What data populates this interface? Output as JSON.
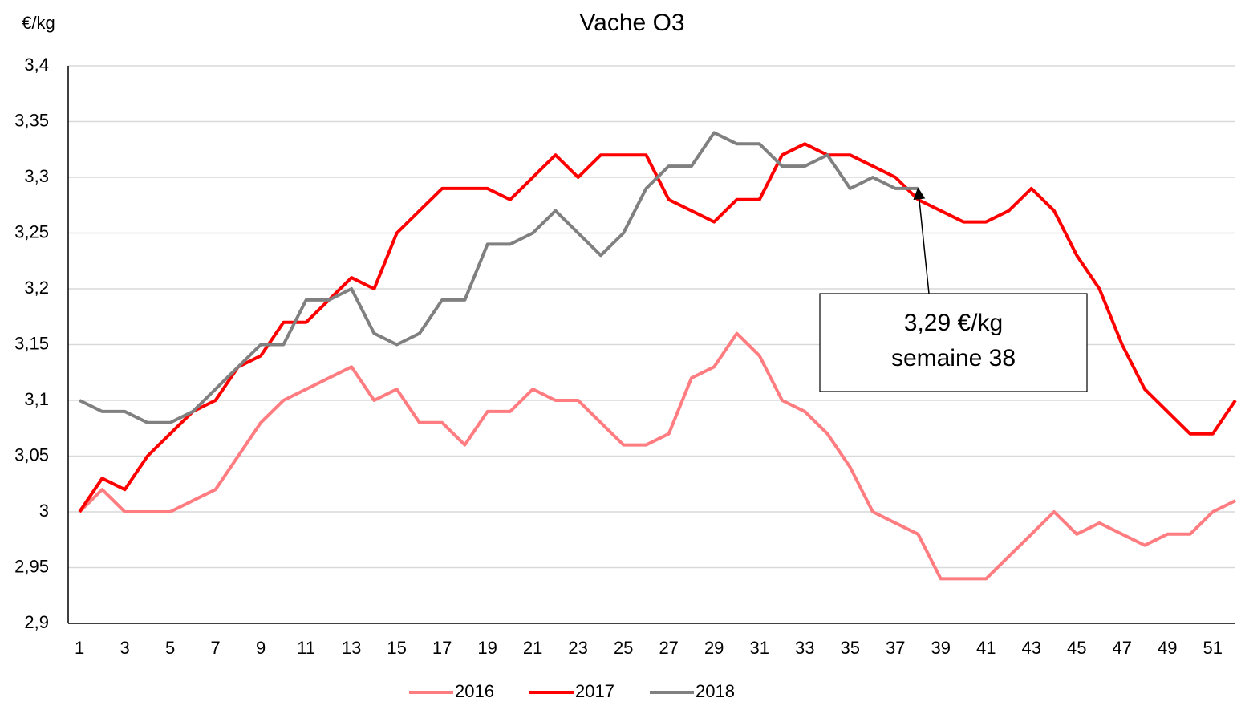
{
  "chart_data": {
    "type": "line",
    "title": "Vache O3",
    "y_label": "€/kg",
    "x": [
      1,
      2,
      3,
      4,
      5,
      6,
      7,
      8,
      9,
      10,
      11,
      12,
      13,
      14,
      15,
      16,
      17,
      18,
      19,
      20,
      21,
      22,
      23,
      24,
      25,
      26,
      27,
      28,
      29,
      30,
      31,
      32,
      33,
      34,
      35,
      36,
      37,
      38,
      39,
      40,
      41,
      42,
      43,
      44,
      45,
      46,
      47,
      48,
      49,
      50,
      51,
      52
    ],
    "xlim": [
      0.5,
      52
    ],
    "xticks": [
      1,
      3,
      5,
      7,
      9,
      11,
      13,
      15,
      17,
      19,
      21,
      23,
      25,
      27,
      29,
      31,
      33,
      35,
      37,
      39,
      41,
      43,
      45,
      47,
      49,
      51
    ],
    "ylim": [
      2.9,
      3.4
    ],
    "yticks": [
      {
        "value": 2.9,
        "label": "2,9"
      },
      {
        "value": 2.95,
        "label": "2,95"
      },
      3,
      {
        "value": 3.05,
        "label": "3,05"
      },
      {
        "value": 3.1,
        "label": "3,1"
      },
      {
        "value": 3.15,
        "label": "3,15"
      },
      {
        "value": 3.2,
        "label": "3,2"
      },
      {
        "value": 3.25,
        "label": "3,25"
      },
      {
        "value": 3.3,
        "label": "3,3"
      },
      {
        "value": 3.35,
        "label": "3,35"
      },
      {
        "value": 3.4,
        "label": "3,4"
      }
    ],
    "grid": true,
    "legend": "bottom",
    "series": [
      {
        "name": "2016",
        "color": "#ff7c80",
        "values": [
          3.0,
          3.02,
          3.0,
          3.0,
          3.0,
          3.01,
          3.02,
          3.05,
          3.08,
          3.1,
          3.11,
          3.12,
          3.13,
          3.1,
          3.11,
          3.08,
          3.08,
          3.06,
          3.09,
          3.09,
          3.11,
          3.1,
          3.1,
          3.08,
          3.06,
          3.06,
          3.07,
          3.12,
          3.13,
          3.16,
          3.14,
          3.1,
          3.09,
          3.07,
          3.04,
          3.0,
          2.99,
          2.98,
          2.94,
          2.94,
          2.94,
          2.96,
          2.98,
          3.0,
          2.98,
          2.99,
          2.98,
          2.97,
          2.98,
          2.98,
          3.0,
          3.01
        ]
      },
      {
        "name": "2017",
        "color": "#ff0000",
        "values": [
          3.0,
          3.03,
          3.02,
          3.05,
          3.07,
          3.09,
          3.1,
          3.13,
          3.14,
          3.17,
          3.17,
          3.19,
          3.21,
          3.2,
          3.25,
          3.27,
          3.29,
          3.29,
          3.29,
          3.28,
          3.3,
          3.32,
          3.3,
          3.32,
          3.32,
          3.32,
          3.28,
          3.27,
          3.26,
          3.28,
          3.28,
          3.32,
          3.33,
          3.32,
          3.32,
          3.31,
          3.3,
          3.28,
          3.27,
          3.26,
          3.26,
          3.27,
          3.29,
          3.27,
          3.23,
          3.2,
          3.15,
          3.11,
          3.09,
          3.07,
          3.07,
          3.1
        ]
      },
      {
        "name": "2018",
        "color": "#808080",
        "values": [
          3.1,
          3.09,
          3.09,
          3.08,
          3.08,
          3.09,
          3.11,
          3.13,
          3.15,
          3.15,
          3.19,
          3.19,
          3.2,
          3.16,
          3.15,
          3.16,
          3.19,
          3.19,
          3.24,
          3.24,
          3.25,
          3.27,
          3.25,
          3.23,
          3.25,
          3.29,
          3.31,
          3.31,
          3.34,
          3.33,
          3.33,
          3.31,
          3.31,
          3.32,
          3.29,
          3.3,
          3.29,
          3.29,
          null,
          null,
          null,
          null,
          null,
          null,
          null,
          null,
          null,
          null,
          null,
          null,
          null,
          null
        ]
      }
    ],
    "annotation": {
      "lines": [
        "3,29 €/kg",
        "semaine 38"
      ],
      "x": 38,
      "y": 3.29
    }
  }
}
